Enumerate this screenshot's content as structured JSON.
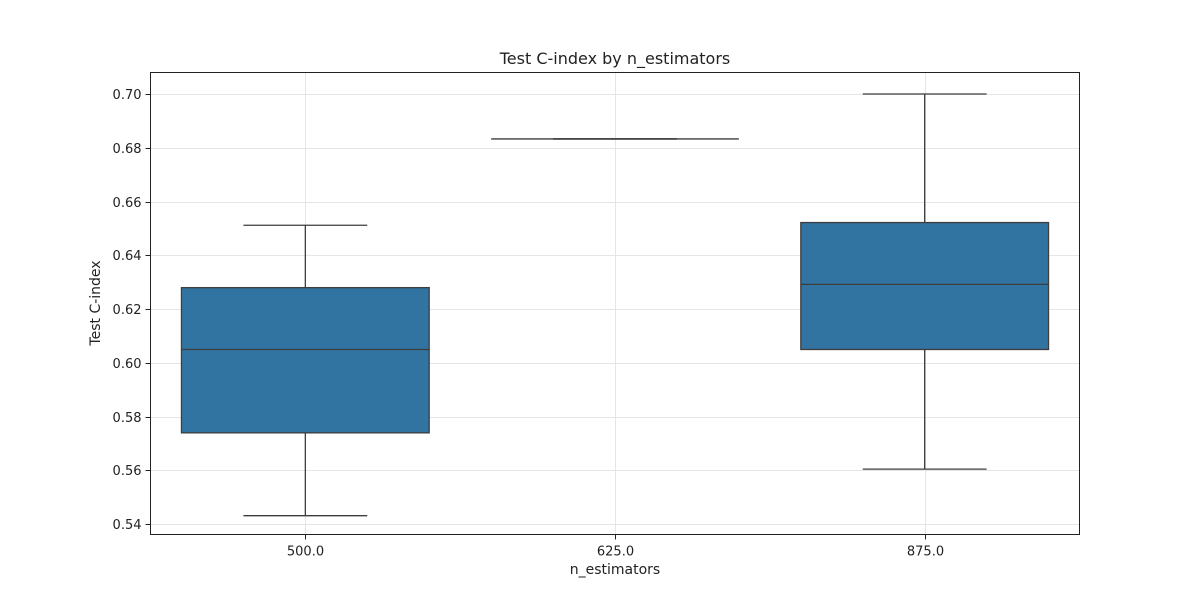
{
  "chart_data": {
    "type": "box",
    "title": "Test C-index by n_estimators",
    "xlabel": "n_estimators",
    "ylabel": "Test C-index",
    "categories": [
      "500.0",
      "625.0",
      "875.0"
    ],
    "boxes": [
      {
        "category": "500.0",
        "whisker_low": 0.5432,
        "q1": 0.574,
        "median": 0.605,
        "q3": 0.628,
        "whisker_high": 0.6512
      },
      {
        "category": "625.0",
        "whisker_low": 0.6833,
        "q1": 0.6833,
        "median": 0.6833,
        "q3": 0.6833,
        "whisker_high": 0.6833
      },
      {
        "category": "875.0",
        "whisker_low": 0.5605,
        "q1": 0.605,
        "median": 0.6292,
        "q3": 0.6522,
        "whisker_high": 0.7
      }
    ],
    "ylim": [
      0.5362,
      0.708
    ],
    "yticks": [
      "0.54",
      "0.56",
      "0.58",
      "0.60",
      "0.62",
      "0.64",
      "0.66",
      "0.68",
      "0.70"
    ],
    "grid": true,
    "colors": {
      "box_fill": "#3274a1",
      "line": "#3d3d3d",
      "grid": "#e5e5e5",
      "axes": "#222222"
    }
  }
}
